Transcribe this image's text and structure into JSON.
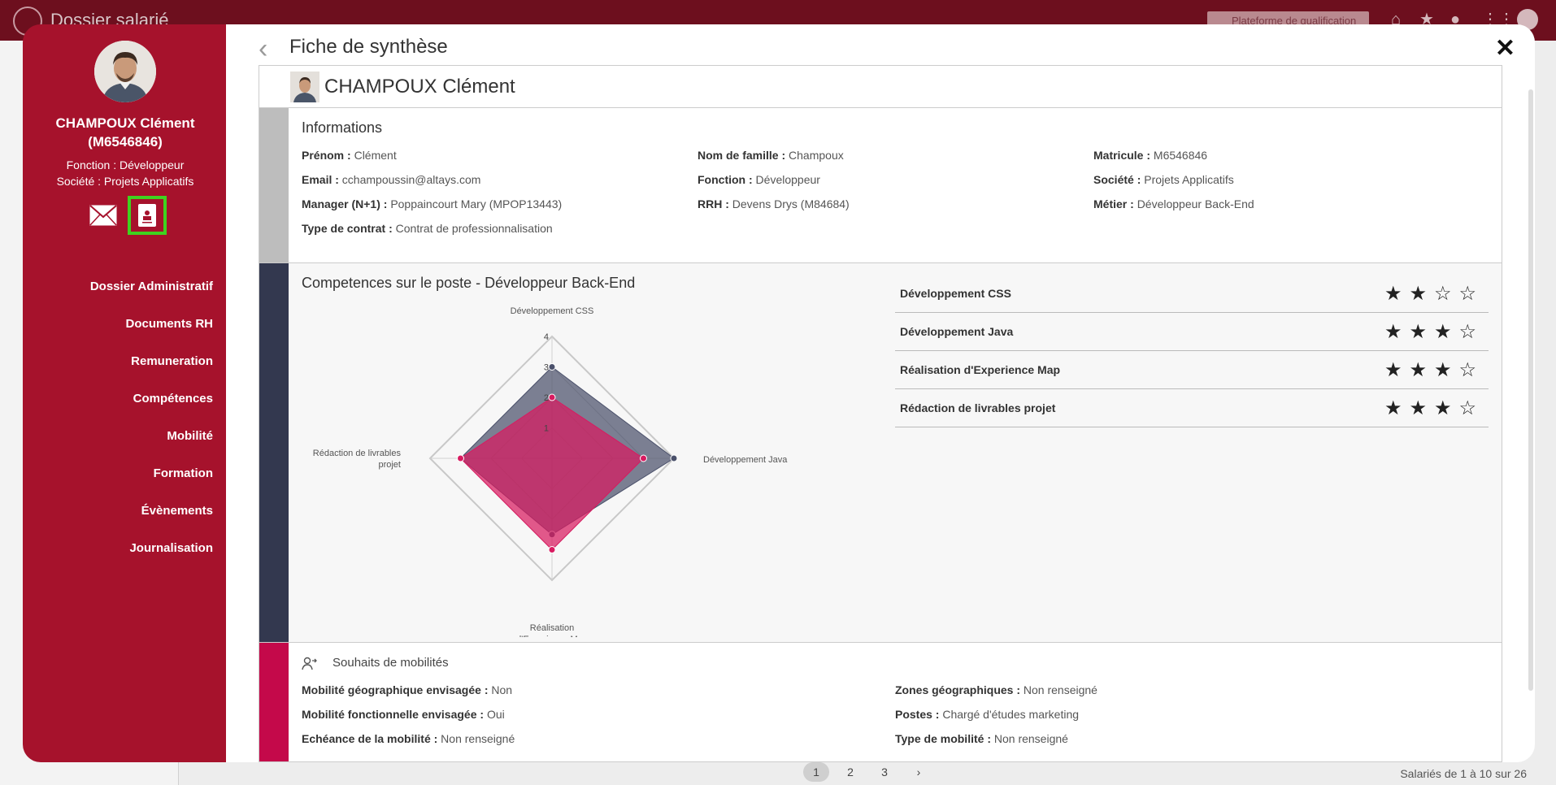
{
  "app": {
    "title": "Dossier salarié",
    "platform": "Plateforme de qualification"
  },
  "background": {
    "pages": [
      "1",
      "2",
      "3"
    ],
    "next": "›",
    "count": "Salariés de 1 à 10 sur 26"
  },
  "profile": {
    "name": "CHAMPOUX Clément",
    "id": "(M6546846)",
    "fonction": "Fonction : Développeur",
    "societe": "Société : Projets Applicatifs"
  },
  "nav": [
    "Dossier Administratif",
    "Documents RH",
    "Remuneration",
    "Compétences",
    "Mobilité",
    "Formation",
    "Évènements",
    "Journalisation"
  ],
  "modal": {
    "title": "Fiche de synthèse",
    "back": "‹",
    "close": "✕"
  },
  "header": {
    "name": "CHAMPOUX Clément"
  },
  "informations": {
    "title": "Informations",
    "fields": [
      {
        "label": "Prénom :",
        "value": "Clément"
      },
      {
        "label": "Nom de famille :",
        "value": "Champoux"
      },
      {
        "label": "Matricule :",
        "value": "M6546846"
      },
      {
        "label": "Email :",
        "value": "cchampoussin@altays.com"
      },
      {
        "label": "Fonction :",
        "value": "Développeur"
      },
      {
        "label": "Société :",
        "value": "Projets Applicatifs"
      },
      {
        "label": "Manager (N+1) :",
        "value": "Poppaincourt Mary (MPOP13443)"
      },
      {
        "label": "RRH :",
        "value": "Devens Drys (M84684)"
      },
      {
        "label": "Métier :",
        "value": "Développeur Back-End"
      },
      {
        "label": "Type de contrat :",
        "value": "Contrat de professionnalisation"
      }
    ]
  },
  "competences": {
    "title": "Competences sur le poste - Développeur Back-End",
    "skills": [
      {
        "name": "Développement CSS",
        "rating": 2,
        "max": 4
      },
      {
        "name": "Développement Java",
        "rating": 3,
        "max": 4
      },
      {
        "name": "Réalisation d'Experience Map",
        "rating": 3,
        "max": 4
      },
      {
        "name": "Rédaction de livrables projet",
        "rating": 3,
        "max": 4
      }
    ]
  },
  "chart_data": {
    "type": "radar",
    "axes": [
      "Développement CSS",
      "Développement Java",
      "Réalisation d'Experience Map",
      "Rédaction de livrables projet"
    ],
    "axis_labels": [
      [
        "Développement CSS"
      ],
      [
        "Développement Java"
      ],
      [
        "Réalisation",
        "d'Experience Map"
      ],
      [
        "Rédaction de livrables",
        "projet"
      ]
    ],
    "scale": [
      "0",
      "1",
      "2",
      "3",
      "4"
    ],
    "max": 4,
    "series": [
      {
        "values": [
          3,
          4,
          2.5,
          3
        ],
        "color": "#4b516b"
      },
      {
        "values": [
          2,
          3,
          3,
          3
        ],
        "color": "#d81b60"
      }
    ]
  },
  "mobilite": {
    "title": "Souhaits de mobilités",
    "fields": [
      {
        "label": "Mobilité géographique envisagée :",
        "value": "Non"
      },
      {
        "label": "Zones géographiques :",
        "value": "Non renseigné"
      },
      {
        "label": "Mobilité fonctionnelle envisagée :",
        "value": "Oui"
      },
      {
        "label": "Postes :",
        "value": "Chargé d'études marketing"
      },
      {
        "label": "Echéance de la mobilité :",
        "value": "Non renseigné"
      },
      {
        "label": "Type de mobilité :",
        "value": "Non renseigné"
      }
    ]
  },
  "colors": {
    "primary": "#a6122c",
    "info_strip": "#bdbdbd",
    "comp_strip": "#33384f",
    "mob_strip": "#c4094a",
    "highlight": "#3fd21f"
  }
}
